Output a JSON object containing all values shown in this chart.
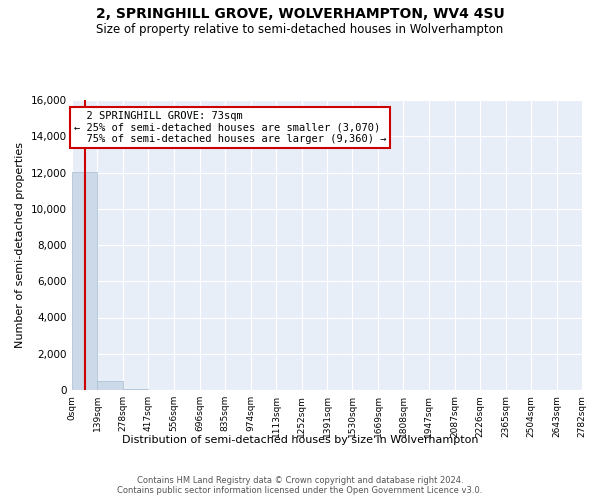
{
  "title_line1": "2, SPRINGHILL GROVE, WOLVERHAMPTON, WV4 4SU",
  "title_line2": "Size of property relative to semi-detached houses in Wolverhampton",
  "xlabel": "Distribution of semi-detached houses by size in Wolverhampton",
  "ylabel": "Number of semi-detached properties",
  "footnote": "Contains HM Land Registry data © Crown copyright and database right 2024.\nContains public sector information licensed under the Open Government Licence v3.0.",
  "bin_edges": [
    0,
    139,
    278,
    417,
    556,
    696,
    835,
    974,
    1113,
    1252,
    1391,
    1530,
    1669,
    1808,
    1947,
    2087,
    2226,
    2365,
    2504,
    2643,
    2782
  ],
  "bar_heights": [
    12050,
    480,
    50,
    15,
    8,
    5,
    3,
    2,
    1,
    1,
    1,
    0,
    1,
    0,
    0,
    0,
    0,
    0,
    0,
    0
  ],
  "bar_color": "#ccd9e8",
  "bar_edge_color": "#a8bfd0",
  "property_size": 73,
  "pct_smaller": 25,
  "count_smaller": 3070,
  "pct_larger": 75,
  "count_larger": 9360,
  "vline_color": "#cc0000",
  "annotation_box_edge_color": "#cc0000",
  "ylim": [
    0,
    16000
  ],
  "background_color": "#e8eef8",
  "grid_color": "#ffffff",
  "title_fontsize": 10,
  "subtitle_fontsize": 8.5,
  "tick_label_fontsize": 6.5,
  "ylabel_fontsize": 8,
  "xlabel_fontsize": 8,
  "annotation_fontsize": 7.5,
  "footnote_fontsize": 6
}
